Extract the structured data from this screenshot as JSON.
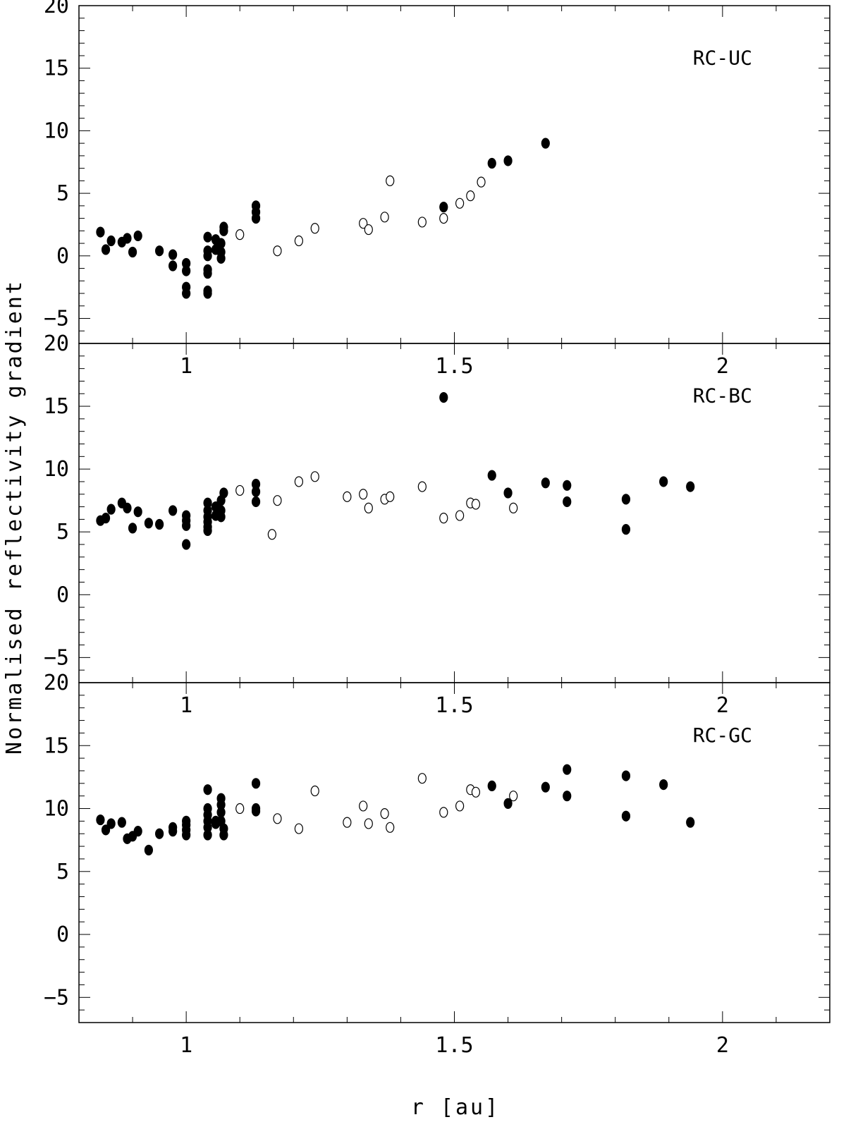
{
  "figure": {
    "ylabel": "Normalised reflectivity gradient",
    "xlabel": "r [au]",
    "xlim": [
      0.8,
      2.2
    ],
    "ylim": [
      -7,
      20
    ],
    "x_ticks": [
      "1",
      "1.5",
      "2"
    ],
    "y_ticks": [
      "20",
      "15",
      "10",
      "5",
      "0",
      "−5"
    ]
  },
  "chart_data": [
    {
      "type": "scatter",
      "title": "RC-UC",
      "xlabel": "r [au]",
      "ylabel": "Normalised reflectivity gradient",
      "xlim": [
        0.8,
        2.2
      ],
      "ylim": [
        -7,
        20
      ],
      "grid": false,
      "series": [
        {
          "marker": "filled",
          "points": [
            [
              0.84,
              1.9
            ],
            [
              0.85,
              0.5
            ],
            [
              0.86,
              1.2
            ],
            [
              0.88,
              1.1
            ],
            [
              0.89,
              1.4
            ],
            [
              0.9,
              0.3
            ],
            [
              0.91,
              1.6
            ],
            [
              0.95,
              0.4
            ],
            [
              0.975,
              0.1
            ],
            [
              0.975,
              -0.8
            ],
            [
              1.0,
              -0.6
            ],
            [
              1.0,
              -1.2
            ],
            [
              1.0,
              -2.5
            ],
            [
              1.0,
              -3.0
            ],
            [
              1.04,
              1.5
            ],
            [
              1.04,
              0.4
            ],
            [
              1.04,
              0.0
            ],
            [
              1.04,
              -1.1
            ],
            [
              1.04,
              -1.4
            ],
            [
              1.04,
              -2.8
            ],
            [
              1.04,
              -3.0
            ],
            [
              1.055,
              1.3
            ],
            [
              1.055,
              0.5
            ],
            [
              1.065,
              1.0
            ],
            [
              1.065,
              0.3
            ],
            [
              1.065,
              -0.2
            ],
            [
              1.07,
              2.3
            ],
            [
              1.07,
              2.0
            ],
            [
              1.13,
              4.0
            ],
            [
              1.13,
              3.5
            ],
            [
              1.13,
              3.0
            ],
            [
              1.48,
              3.9
            ],
            [
              1.57,
              7.4
            ],
            [
              1.6,
              7.6
            ],
            [
              1.67,
              9.0
            ]
          ]
        },
        {
          "marker": "open",
          "points": [
            [
              1.1,
              1.7
            ],
            [
              1.17,
              0.4
            ],
            [
              1.21,
              1.2
            ],
            [
              1.24,
              2.2
            ],
            [
              1.33,
              2.6
            ],
            [
              1.34,
              2.1
            ],
            [
              1.37,
              3.1
            ],
            [
              1.38,
              6.0
            ],
            [
              1.44,
              2.7
            ],
            [
              1.48,
              3.0
            ],
            [
              1.51,
              4.2
            ],
            [
              1.53,
              4.8
            ],
            [
              1.55,
              5.9
            ]
          ]
        }
      ]
    },
    {
      "type": "scatter",
      "title": "RC-BC",
      "xlabel": "r [au]",
      "ylabel": "Normalised reflectivity gradient",
      "xlim": [
        0.8,
        2.2
      ],
      "ylim": [
        -7,
        20
      ],
      "grid": false,
      "series": [
        {
          "marker": "filled",
          "points": [
            [
              0.84,
              5.9
            ],
            [
              0.85,
              6.1
            ],
            [
              0.86,
              6.8
            ],
            [
              0.88,
              7.3
            ],
            [
              0.89,
              6.9
            ],
            [
              0.9,
              5.3
            ],
            [
              0.91,
              6.6
            ],
            [
              0.93,
              5.7
            ],
            [
              0.95,
              5.6
            ],
            [
              0.975,
              6.7
            ],
            [
              1.0,
              6.3
            ],
            [
              1.0,
              5.9
            ],
            [
              1.0,
              5.5
            ],
            [
              1.0,
              4.0
            ],
            [
              1.04,
              7.3
            ],
            [
              1.04,
              6.7
            ],
            [
              1.04,
              6.2
            ],
            [
              1.04,
              5.8
            ],
            [
              1.04,
              5.4
            ],
            [
              1.04,
              5.1
            ],
            [
              1.055,
              7.0
            ],
            [
              1.055,
              6.3
            ],
            [
              1.065,
              7.5
            ],
            [
              1.065,
              6.7
            ],
            [
              1.065,
              6.2
            ],
            [
              1.07,
              8.1
            ],
            [
              1.13,
              8.8
            ],
            [
              1.13,
              8.2
            ],
            [
              1.13,
              7.4
            ],
            [
              1.48,
              15.7
            ],
            [
              1.57,
              9.5
            ],
            [
              1.6,
              8.1
            ],
            [
              1.67,
              8.9
            ],
            [
              1.71,
              8.7
            ],
            [
              1.71,
              7.4
            ],
            [
              1.82,
              7.6
            ],
            [
              1.82,
              5.2
            ],
            [
              1.89,
              9.0
            ],
            [
              1.94,
              8.6
            ]
          ]
        },
        {
          "marker": "open",
          "points": [
            [
              1.1,
              8.3
            ],
            [
              1.16,
              4.8
            ],
            [
              1.17,
              7.5
            ],
            [
              1.21,
              9.0
            ],
            [
              1.24,
              9.4
            ],
            [
              1.3,
              7.8
            ],
            [
              1.33,
              8.0
            ],
            [
              1.34,
              6.9
            ],
            [
              1.37,
              7.6
            ],
            [
              1.38,
              7.8
            ],
            [
              1.44,
              8.6
            ],
            [
              1.48,
              6.1
            ],
            [
              1.51,
              6.3
            ],
            [
              1.53,
              7.3
            ],
            [
              1.54,
              7.2
            ],
            [
              1.61,
              6.9
            ]
          ]
        }
      ]
    },
    {
      "type": "scatter",
      "title": "RC-GC",
      "xlabel": "r [au]",
      "ylabel": "Normalised reflectivity gradient",
      "xlim": [
        0.8,
        2.2
      ],
      "ylim": [
        -7,
        20
      ],
      "grid": false,
      "series": [
        {
          "marker": "filled",
          "points": [
            [
              0.84,
              9.1
            ],
            [
              0.85,
              8.3
            ],
            [
              0.86,
              8.8
            ],
            [
              0.88,
              8.9
            ],
            [
              0.89,
              7.6
            ],
            [
              0.9,
              7.8
            ],
            [
              0.91,
              8.2
            ],
            [
              0.93,
              6.7
            ],
            [
              0.95,
              8.0
            ],
            [
              0.975,
              8.5
            ],
            [
              0.975,
              8.2
            ],
            [
              1.0,
              9.0
            ],
            [
              1.0,
              8.7
            ],
            [
              1.0,
              8.3
            ],
            [
              1.0,
              7.9
            ],
            [
              1.04,
              11.5
            ],
            [
              1.04,
              10.0
            ],
            [
              1.04,
              9.5
            ],
            [
              1.04,
              9.0
            ],
            [
              1.04,
              8.5
            ],
            [
              1.04,
              7.9
            ],
            [
              1.055,
              9.0
            ],
            [
              1.055,
              8.8
            ],
            [
              1.065,
              10.8
            ],
            [
              1.065,
              10.3
            ],
            [
              1.065,
              9.7
            ],
            [
              1.065,
              9.0
            ],
            [
              1.07,
              8.4
            ],
            [
              1.07,
              7.9
            ],
            [
              1.13,
              12.0
            ],
            [
              1.13,
              10.0
            ],
            [
              1.13,
              9.8
            ],
            [
              1.57,
              11.8
            ],
            [
              1.6,
              10.4
            ],
            [
              1.67,
              11.7
            ],
            [
              1.71,
              13.1
            ],
            [
              1.71,
              11.0
            ],
            [
              1.82,
              12.6
            ],
            [
              1.82,
              9.4
            ],
            [
              1.89,
              11.9
            ],
            [
              1.94,
              8.9
            ]
          ]
        },
        {
          "marker": "open",
          "points": [
            [
              1.1,
              10.0
            ],
            [
              1.17,
              9.2
            ],
            [
              1.21,
              8.4
            ],
            [
              1.24,
              11.4
            ],
            [
              1.3,
              8.9
            ],
            [
              1.33,
              10.2
            ],
            [
              1.34,
              8.8
            ],
            [
              1.37,
              9.6
            ],
            [
              1.38,
              8.5
            ],
            [
              1.44,
              12.4
            ],
            [
              1.48,
              9.7
            ],
            [
              1.51,
              10.2
            ],
            [
              1.53,
              11.5
            ],
            [
              1.54,
              11.3
            ],
            [
              1.61,
              11.0
            ]
          ]
        }
      ]
    }
  ]
}
